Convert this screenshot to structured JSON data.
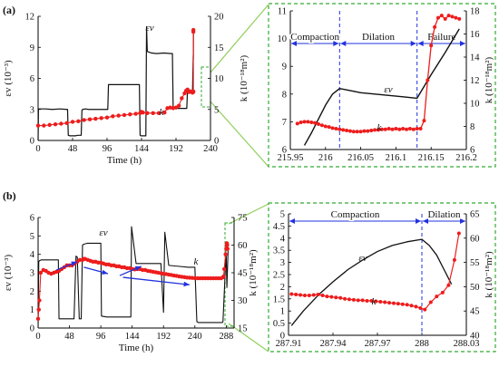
{
  "figure": {
    "panel_a_label": "(a)",
    "panel_b_label": "(b)",
    "colors": {
      "strain": "#111111",
      "permeability": "#ee1c1c",
      "zoom_box": "#33aa33",
      "phase_divider": "#2233dd",
      "phase_arrow": "#2233dd"
    }
  },
  "chart_data": [
    {
      "id": "a_main",
      "type": "line",
      "xlabel": "Time (h)",
      "ylabel": "εv (10⁻³)",
      "y2label": "k (10⁻¹⁸m²)",
      "xlim": [
        0,
        240
      ],
      "ylim": [
        0,
        12
      ],
      "y2lim": [
        0,
        20
      ],
      "xticks": [
        "0",
        "48",
        "96",
        "144",
        "192",
        "240"
      ],
      "yticks": [
        "0",
        "3",
        "6",
        "9",
        "12"
      ],
      "y2ticks": [
        "0",
        "5",
        "10",
        "15",
        "20"
      ],
      "annotations": {
        "strain": "εv",
        "perm": "k"
      },
      "grid": false,
      "series": [
        {
          "key": "strain",
          "axis": "left",
          "x": [
            0,
            0.5,
            1,
            10,
            20,
            30,
            40,
            41,
            42,
            44,
            48,
            52,
            55,
            58,
            60,
            61,
            62,
            66,
            70,
            80,
            90,
            97,
            98,
            100,
            110,
            120,
            130,
            141,
            142,
            143,
            148,
            150,
            151,
            152,
            158,
            165,
            175,
            185,
            187,
            188,
            190,
            195,
            200,
            205,
            207,
            208,
            210,
            213,
            215,
            216,
            216.13,
            216.2
          ],
          "y": [
            0,
            3.0,
            3.05,
            3.05,
            3.0,
            3.05,
            3.0,
            3.0,
            0.5,
            0.45,
            0.45,
            0.45,
            0.5,
            0.5,
            0.5,
            2.9,
            3.0,
            3.05,
            3.0,
            3.0,
            3.0,
            3.0,
            5.4,
            5.4,
            5.4,
            5.4,
            5.4,
            5.4,
            0.5,
            0.45,
            0.45,
            0.45,
            11.0,
            8.6,
            8.45,
            8.4,
            8.45,
            8.4,
            8.4,
            3.2,
            3.1,
            3.1,
            3.1,
            3.1,
            3.1,
            4.9,
            4.8,
            4.8,
            4.8,
            8.2,
            7.9,
            10.4
          ]
        },
        {
          "key": "perm",
          "axis": "right",
          "x": [
            0,
            8,
            16,
            24,
            32,
            40,
            48,
            56,
            64,
            72,
            80,
            88,
            96,
            104,
            112,
            120,
            128,
            136,
            142,
            144,
            146,
            152,
            160,
            168,
            176,
            180,
            184,
            188,
            192,
            196,
            200,
            204,
            206,
            208,
            210,
            212,
            214,
            215,
            216,
            216.13,
            216.17,
            216.2
          ],
          "y": [
            2.4,
            2.4,
            2.5,
            2.6,
            2.7,
            2.8,
            3.0,
            3.1,
            3.3,
            3.4,
            3.5,
            3.6,
            3.7,
            3.9,
            4.0,
            4.1,
            4.2,
            4.3,
            4.4,
            4.6,
            4.5,
            4.4,
            4.4,
            4.4,
            4.5,
            5.2,
            5.3,
            5.2,
            5.3,
            5.6,
            6.8,
            7.6,
            8.0,
            8.2,
            7.8,
            7.9,
            7.8,
            7.7,
            7.8,
            7.9,
            17.5,
            17.8
          ]
        }
      ]
    },
    {
      "id": "a_zoom",
      "type": "line",
      "xlim": [
        215.95,
        216.2
      ],
      "ylim": [
        6,
        11
      ],
      "y2lim": [
        6,
        18
      ],
      "xticks": [
        "215.95",
        "216",
        "216.05",
        "216.1",
        "216.15",
        "216.2"
      ],
      "yticks": [
        "6",
        "7",
        "8",
        "9",
        "10",
        "11"
      ],
      "y2ticks": [
        "6",
        "8",
        "10",
        "12",
        "14",
        "16",
        "18"
      ],
      "y2label": "k (10⁻¹⁸m²)",
      "dividers": [
        216.02,
        216.13
      ],
      "phases": [
        {
          "label": "Compaction",
          "from": 215.95,
          "to": 216.02
        },
        {
          "label": "Dilation",
          "from": 216.02,
          "to": 216.13
        },
        {
          "label": "Failure",
          "from": 216.13,
          "to": 216.2
        }
      ],
      "annotations": {
        "strain": "εv",
        "perm": "k"
      },
      "grid": false,
      "series": [
        {
          "key": "strain",
          "axis": "left",
          "x": [
            215.97,
            215.98,
            215.99,
            216.0,
            216.01,
            216.02,
            216.03,
            216.05,
            216.07,
            216.09,
            216.11,
            216.13,
            216.15,
            216.17,
            216.19
          ],
          "y": [
            6.15,
            6.6,
            7.1,
            7.6,
            8.0,
            8.2,
            8.15,
            8.05,
            8.0,
            7.95,
            7.9,
            7.85,
            8.7,
            9.5,
            10.35
          ]
        },
        {
          "key": "perm",
          "axis": "right",
          "x": [
            215.96,
            215.965,
            215.97,
            215.975,
            215.98,
            215.985,
            215.99,
            215.995,
            216.0,
            216.005,
            216.01,
            216.015,
            216.02,
            216.025,
            216.03,
            216.035,
            216.04,
            216.045,
            216.05,
            216.055,
            216.06,
            216.065,
            216.07,
            216.075,
            216.08,
            216.085,
            216.09,
            216.095,
            216.1,
            216.105,
            216.11,
            216.115,
            216.12,
            216.125,
            216.13,
            216.135,
            216.14,
            216.145,
            216.15,
            216.155,
            216.16,
            216.165,
            216.17,
            216.175,
            216.18,
            216.185,
            216.19
          ],
          "y": [
            8.25,
            8.35,
            8.4,
            8.4,
            8.35,
            8.3,
            8.2,
            8.1,
            8.0,
            7.95,
            7.85,
            7.8,
            7.75,
            7.7,
            7.65,
            7.6,
            7.55,
            7.55,
            7.55,
            7.6,
            7.6,
            7.65,
            7.7,
            7.7,
            7.75,
            7.75,
            7.8,
            7.75,
            7.8,
            7.75,
            7.8,
            7.75,
            7.8,
            7.75,
            7.8,
            7.8,
            8.5,
            12.0,
            15.0,
            16.6,
            17.4,
            17.6,
            17.3,
            17.6,
            17.5,
            17.4,
            17.3
          ]
        }
      ]
    },
    {
      "id": "b_main",
      "type": "line",
      "xlabel": "Time (h)",
      "ylabel": "εv (10⁻³)",
      "y2label": "k (10⁻¹⁸m²)",
      "xlim": [
        0,
        300
      ],
      "ylim": [
        0,
        6
      ],
      "y2lim": [
        15,
        75
      ],
      "xticks": [
        "0",
        "48",
        "96",
        "144",
        "192",
        "240",
        "288"
      ],
      "yticks": [
        "0",
        "1",
        "2",
        "3",
        "4",
        "5",
        "6"
      ],
      "y2ticks": [
        "15",
        "30",
        "45",
        "60",
        "75"
      ],
      "annotations": {
        "strain": "εv",
        "perm": "k"
      },
      "grid": false,
      "series": [
        {
          "key": "strain",
          "axis": "left",
          "x": [
            0,
            1,
            2,
            5,
            15,
            25,
            31,
            32,
            35,
            45,
            55,
            58,
            60,
            63,
            66,
            68,
            70,
            75,
            85,
            95,
            96,
            97,
            105,
            115,
            125,
            135,
            142,
            143,
            150,
            160,
            170,
            180,
            188,
            192,
            194,
            200,
            215,
            230,
            238,
            240,
            243,
            245,
            260,
            275,
            282,
            283,
            287,
            288,
            289,
            291
          ],
          "y": [
            0,
            3.6,
            3.65,
            3.7,
            3.7,
            3.7,
            3.7,
            0.5,
            0.5,
            0.5,
            0.5,
            3.9,
            3.85,
            0.5,
            0.5,
            4.5,
            4.55,
            4.6,
            4.6,
            4.6,
            4.6,
            0.65,
            0.6,
            0.6,
            0.6,
            0.6,
            0.6,
            5.5,
            3.5,
            3.5,
            3.5,
            3.5,
            3.5,
            0.85,
            5.2,
            3.4,
            3.35,
            3.3,
            3.3,
            3.3,
            0.35,
            0.3,
            0.3,
            0.3,
            0.3,
            0.35,
            3.5,
            3.9,
            2.2,
            4.4
          ]
        },
        {
          "key": "perm",
          "axis": "right",
          "x": [
            0,
            1,
            2,
            4,
            8,
            12,
            16,
            20,
            24,
            28,
            32,
            36,
            40,
            44,
            48,
            52,
            56,
            60,
            64,
            68,
            70,
            72,
            76,
            80,
            84,
            88,
            92,
            96,
            100,
            104,
            108,
            112,
            116,
            120,
            124,
            128,
            132,
            136,
            140,
            144,
            148,
            152,
            156,
            160,
            164,
            168,
            172,
            176,
            180,
            184,
            188,
            192,
            196,
            200,
            204,
            208,
            212,
            216,
            220,
            224,
            228,
            232,
            236,
            240,
            244,
            248,
            252,
            256,
            260,
            264,
            268,
            272,
            276,
            280,
            283,
            284,
            285,
            287,
            288,
            288.5,
            289,
            289.5,
            290
          ],
          "y": [
            20,
            25,
            30,
            45,
            46.5,
            46,
            45,
            44.5,
            45,
            45.5,
            46,
            47,
            48,
            49,
            49,
            49,
            50,
            51,
            52,
            52,
            52.5,
            52.5,
            52,
            51.5,
            51,
            51,
            50.5,
            50.5,
            50,
            49.5,
            49.5,
            49,
            49,
            48.5,
            48.5,
            48,
            48,
            47.5,
            47.5,
            47,
            46.8,
            47,
            47,
            46.5,
            46.5,
            46,
            45.8,
            45.5,
            45.3,
            45,
            44.8,
            44.5,
            44.3,
            44,
            43.8,
            43.5,
            43.3,
            43,
            42.8,
            42.6,
            42.4,
            42.3,
            42.2,
            42.1,
            42,
            42,
            42,
            42,
            42,
            42,
            42,
            42,
            42,
            42,
            42.5,
            43,
            47,
            55,
            58,
            60,
            61,
            60,
            58
          ]
        }
      ],
      "arrows": [
        [
          28,
          3.15,
          60,
          3.6
        ],
        [
          70,
          3.3,
          107,
          2.95
        ],
        [
          125,
          2.85,
          158,
          3.35
        ],
        [
          130,
          2.75,
          232,
          2.35
        ]
      ]
    },
    {
      "id": "b_zoom",
      "type": "line",
      "xlim": [
        287.91,
        288.03
      ],
      "ylim": [
        0,
        5
      ],
      "y2lim": [
        40,
        65
      ],
      "xticks": [
        "287.91",
        "287.94",
        "287.97",
        "288",
        "288.03"
      ],
      "yticks": [
        "0",
        "0.5",
        "1",
        "1.5",
        "2",
        "2.5",
        "3",
        "3.5",
        "4",
        "4.5",
        "5"
      ],
      "y2ticks": [
        "40",
        "45",
        "50",
        "55",
        "60",
        "65"
      ],
      "y2label": "k (10⁻¹⁸m²)",
      "dividers": [
        288.0
      ],
      "phases": [
        {
          "label": "Compaction",
          "from": 287.91,
          "to": 288.0
        },
        {
          "label": "Dilation",
          "from": 288.0,
          "to": 288.03
        }
      ],
      "annotations": {
        "strain": "εv",
        "perm": "k"
      },
      "grid": false,
      "series": [
        {
          "key": "strain",
          "axis": "left",
          "x": [
            287.912,
            287.92,
            287.93,
            287.94,
            287.95,
            287.96,
            287.97,
            287.98,
            287.99,
            288.0,
            288.005,
            288.01,
            288.015,
            288.02
          ],
          "y": [
            0.4,
            1.0,
            1.65,
            2.2,
            2.7,
            3.1,
            3.45,
            3.7,
            3.85,
            3.95,
            3.7,
            3.3,
            2.7,
            2.1
          ]
        },
        {
          "key": "perm",
          "axis": "right",
          "x": [
            287.912,
            287.915,
            287.918,
            287.921,
            287.924,
            287.927,
            287.93,
            287.933,
            287.936,
            287.939,
            287.942,
            287.945,
            287.948,
            287.951,
            287.954,
            287.957,
            287.96,
            287.963,
            287.966,
            287.969,
            287.972,
            287.975,
            287.978,
            287.981,
            287.984,
            287.987,
            287.99,
            287.993,
            287.996,
            287.999,
            288.002,
            288.006,
            288.01,
            288.014,
            288.018,
            288.022,
            288.025
          ],
          "y": [
            48.5,
            48.4,
            48.3,
            48.2,
            48.2,
            48.3,
            48.4,
            48.2,
            48.0,
            47.9,
            47.8,
            47.7,
            47.5,
            47.4,
            47.3,
            47.2,
            47.2,
            47.1,
            47.1,
            47.0,
            46.9,
            46.8,
            46.7,
            46.6,
            46.5,
            46.4,
            46.3,
            46.1,
            45.9,
            45.6,
            45.3,
            46.8,
            48.0,
            48.8,
            50.3,
            55.5,
            61.0
          ]
        }
      ]
    }
  ]
}
